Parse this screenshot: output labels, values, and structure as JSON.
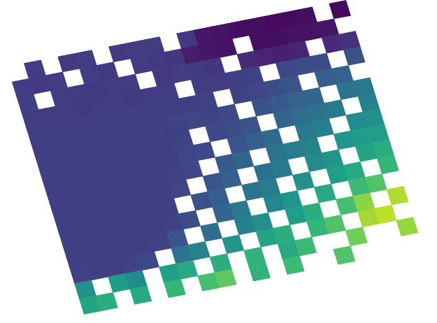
{
  "chart_data": {
    "type": "heatmap",
    "tick_labels": false,
    "color_range": [
      0,
      1
    ],
    "cells": [
      [
        null,
        0.18,
        null,
        0.17,
        0.18,
        null,
        0.17,
        0.18,
        0.18,
        null,
        0.17,
        0.06,
        0.05,
        0.04,
        0.04,
        0.03,
        0.03,
        0.04,
        null,
        0.03
      ],
      [
        0.18,
        0.17,
        0.18,
        null,
        0.18,
        0.17,
        null,
        0.18,
        0.17,
        0.16,
        0.08,
        0.06,
        0.05,
        null,
        0.04,
        0.04,
        0.05,
        0.05,
        0.06,
        null
      ],
      [
        0.19,
        null,
        0.18,
        0.18,
        0.17,
        0.18,
        0.18,
        null,
        0.17,
        0.18,
        0.17,
        0.16,
        null,
        0.12,
        0.1,
        0.09,
        0.1,
        null,
        0.12,
        0.14
      ],
      [
        0.18,
        0.18,
        0.18,
        0.17,
        0.18,
        0.18,
        0.17,
        0.18,
        0.18,
        null,
        0.18,
        0.18,
        0.19,
        0.2,
        null,
        0.22,
        0.24,
        0.23,
        null,
        0.25
      ],
      [
        0.19,
        0.19,
        0.19,
        0.19,
        0.19,
        0.19,
        0.19,
        0.19,
        0.19,
        0.19,
        0.2,
        null,
        0.2,
        0.21,
        0.24,
        0.26,
        null,
        0.3,
        0.32,
        null
      ],
      [
        0.19,
        0.19,
        0.19,
        0.19,
        0.19,
        0.19,
        0.19,
        0.19,
        0.2,
        0.21,
        0.2,
        0.22,
        null,
        0.25,
        0.28,
        0.31,
        0.33,
        null,
        0.38,
        0.4
      ],
      [
        0.19,
        0.19,
        0.19,
        0.19,
        0.19,
        0.19,
        0.19,
        0.19,
        0.2,
        null,
        0.22,
        0.23,
        0.26,
        null,
        0.32,
        0.35,
        0.38,
        0.41,
        null,
        0.44
      ],
      [
        0.19,
        0.19,
        0.19,
        0.19,
        0.19,
        0.19,
        0.19,
        0.19,
        0.21,
        0.22,
        null,
        0.27,
        0.3,
        0.34,
        null,
        0.4,
        0.44,
        null,
        0.48,
        0.5
      ],
      [
        0.19,
        0.19,
        0.19,
        0.19,
        0.19,
        0.19,
        0.19,
        0.2,
        0.22,
        null,
        0.28,
        0.32,
        null,
        0.38,
        0.42,
        0.45,
        null,
        0.52,
        0.55,
        0.56
      ],
      [
        0.19,
        0.19,
        0.19,
        0.19,
        0.19,
        0.19,
        0.19,
        0.21,
        null,
        0.27,
        0.3,
        null,
        0.36,
        0.41,
        null,
        0.48,
        0.52,
        null,
        0.58,
        0.62
      ],
      [
        0.19,
        0.19,
        0.19,
        0.19,
        0.19,
        0.19,
        0.19,
        null,
        0.25,
        0.3,
        null,
        0.38,
        0.42,
        null,
        0.5,
        null,
        0.56,
        0.6,
        null,
        0.66
      ],
      [
        0.19,
        0.19,
        0.19,
        0.19,
        0.19,
        0.19,
        0.2,
        0.24,
        null,
        0.33,
        0.4,
        null,
        0.46,
        0.52,
        null,
        0.6,
        null,
        0.68,
        0.72,
        null
      ],
      [
        0.19,
        0.19,
        0.19,
        0.19,
        0.19,
        0.2,
        0.26,
        null,
        0.35,
        null,
        0.44,
        0.5,
        null,
        0.56,
        0.62,
        null,
        0.7,
        0.82,
        null,
        0.88
      ],
      [
        0.2,
        0.19,
        0.19,
        0.2,
        0.22,
        null,
        0.38,
        0.45,
        null,
        0.52,
        null,
        0.58,
        0.62,
        null,
        0.66,
        0.72,
        null,
        0.86,
        0.9,
        null
      ],
      [
        0.5,
        null,
        0.55,
        0.48,
        null,
        0.56,
        0.6,
        null,
        0.62,
        null,
        0.64,
        null,
        0.6,
        0.68,
        null,
        null,
        0.78,
        null,
        null,
        0.84
      ],
      [
        0.58,
        0.62,
        null,
        0.6,
        null,
        0.66,
        null,
        0.7,
        0.75,
        null,
        0.65,
        null,
        0.68,
        null,
        null,
        0.72,
        null,
        null,
        null,
        null
      ]
    ]
  }
}
